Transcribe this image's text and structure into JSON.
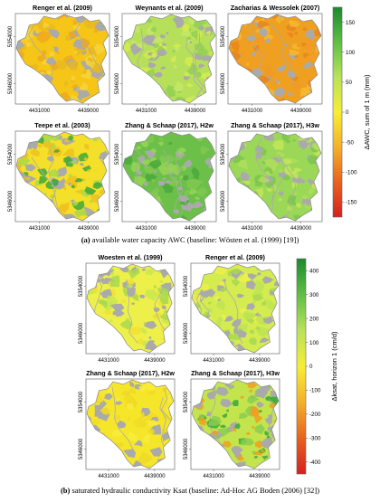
{
  "panel_a": {
    "caption_letter": "(a)",
    "caption_text": " available water capacity AWC (baseline: Wösten et al. (1999) [19])",
    "colorbar_label": "ΔAWC, sum of 1 m (mm)",
    "colorbar_ticks": [
      "150",
      "100",
      "50",
      "0",
      "-50",
      "-100",
      "-150"
    ],
    "y_ticks": [
      "5354000",
      "5346000"
    ],
    "x_ticks": [
      "4431000",
      "4439000"
    ],
    "maps": [
      {
        "title": "Renger et al. (2009)",
        "base": "#f5c518",
        "alt": [
          "#f0a81c",
          "#f7d43a",
          "#e8b820"
        ],
        "gray": 0.09
      },
      {
        "title": "Weynants et al. (2009)",
        "base": "#b7e05a",
        "alt": [
          "#d6ec4e",
          "#93cf55",
          "#c6e66a"
        ],
        "gray": 0.11
      },
      {
        "title": "Zacharias & Wessolek (2007)",
        "base": "#f0a020",
        "alt": [
          "#e8861e",
          "#f4b830",
          "#ee9a26"
        ],
        "gray": 0.09
      },
      {
        "title": "Teepe et al. (2003)",
        "base": "#f4e028",
        "alt": [
          "#3da83a",
          "#a8d84a",
          "#f0c020"
        ],
        "gray": 0.08
      },
      {
        "title": "Zhang & Schaap (2017), H2w",
        "base": "#6cc04a",
        "alt": [
          "#4aa83c",
          "#98d456",
          "#80c850"
        ],
        "gray": 0.07
      },
      {
        "title": "Zhang & Schaap (2017), H3w",
        "base": "#9cd858",
        "alt": [
          "#c4e658",
          "#7cc64e",
          "#b0de5a"
        ],
        "gray": 0.09
      }
    ]
  },
  "panel_b": {
    "caption_letter": "(b)",
    "caption_text": " saturated hydraulic conductivity Ksat (baseline: Ad-Hoc AG Boden (2006) [32])",
    "colorbar_label": "Δksat, horizon 1 (cm/d)",
    "colorbar_ticks": [
      "400",
      "300",
      "200",
      "100",
      "0",
      "-100",
      "-200",
      "-300",
      "-400"
    ],
    "y_ticks": [
      "5354000",
      "5346000"
    ],
    "x_ticks": [
      "4431000",
      "4439000"
    ],
    "maps": [
      {
        "title": "Woesten et al. (1999)",
        "base": "#eef04a",
        "alt": [
          "#c8e850",
          "#f4e030",
          "#a8d850"
        ],
        "gray": 0.12
      },
      {
        "title": "Renger et al. (2009)",
        "base": "#d4ec50",
        "alt": [
          "#eef04a",
          "#a8d850",
          "#bfe454"
        ],
        "gray": 0.13
      },
      {
        "title": "Zhang & Schaap (2017), H2w",
        "base": "#f6e62a",
        "alt": [
          "#f2dc26",
          "#f8ec3c",
          "#eed828"
        ],
        "gray": 0.07
      },
      {
        "title": "Zhang & Schaap (2017), H3w",
        "base": "#c4e44e",
        "alt": [
          "#3aa83c",
          "#f0a020",
          "#8acc50"
        ],
        "gray": 0.09
      }
    ]
  },
  "colors": {
    "gray_patch": "#aaaaaa",
    "outline": "#888888",
    "awc_scale": [
      "#1a8a2e",
      "#5fbf44",
      "#b9e25a",
      "#f6ee34",
      "#f4b12a",
      "#e8621e",
      "#d62020"
    ],
    "ksat_scale": [
      "#1a8a2e",
      "#5fbf44",
      "#b9e25a",
      "#f6ee34",
      "#f4b12a",
      "#e8621e",
      "#d62020"
    ]
  }
}
